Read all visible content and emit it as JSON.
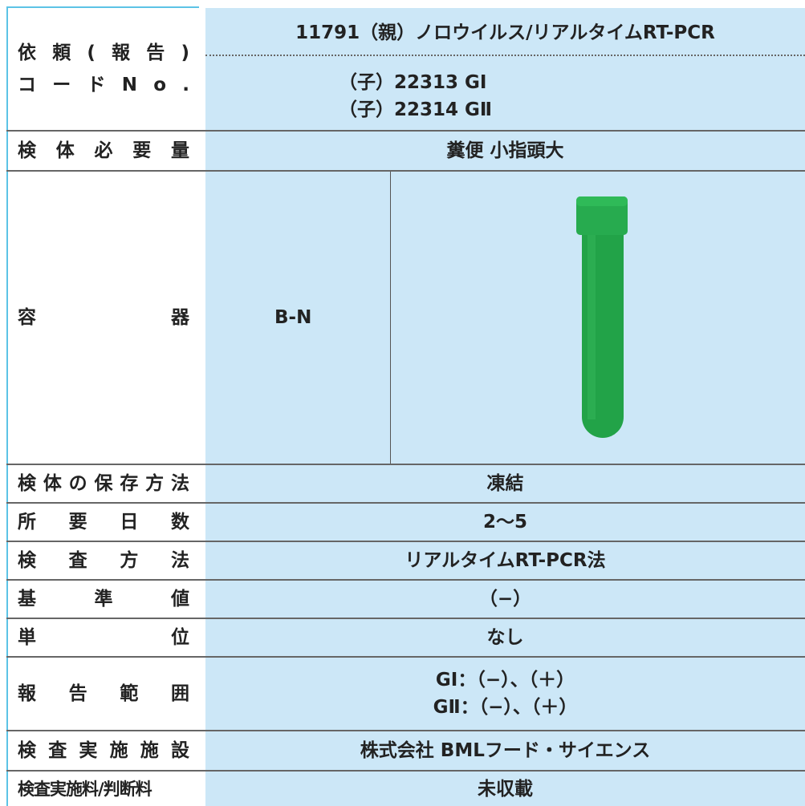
{
  "table": {
    "rows": [
      {
        "label": [
          "依頼(報告)",
          "コードNo."
        ],
        "value": [
          "11791（親）ノロウイルス/リアルタイムRT-PCR",
          "（子）22313 GⅠ",
          "（子）22314 GⅡ"
        ]
      },
      {
        "label": [
          "検体必要量"
        ],
        "value": [
          "糞便 小指頭大"
        ]
      },
      {
        "label": [
          "容器"
        ],
        "value": [
          "B-N"
        ]
      },
      {
        "label": [
          "検体の保存方法"
        ],
        "value": [
          "凍結"
        ]
      },
      {
        "label": [
          "所要日数"
        ],
        "value": [
          "2～5"
        ]
      },
      {
        "label": [
          "検査方法"
        ],
        "value": [
          "リアルタイムRT-PCR法"
        ]
      },
      {
        "label": [
          "基準値"
        ],
        "value": [
          "（−）"
        ]
      },
      {
        "label": [
          "単位"
        ],
        "value": [
          "なし"
        ]
      },
      {
        "label": [
          "報告範囲"
        ],
        "value": [
          "GⅠ：（−）、（＋）",
          "GⅡ：（−）、（＋）"
        ]
      },
      {
        "label": [
          "検査実施施設"
        ],
        "value": [
          "株式会社 BMLフード・サイエンス"
        ]
      },
      {
        "label": [
          "検査実施料/判断料"
        ],
        "value": [
          "未収載"
        ]
      }
    ]
  }
}
